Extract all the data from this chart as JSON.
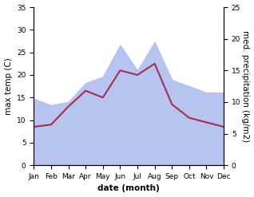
{
  "months": [
    "Jan",
    "Feb",
    "Mar",
    "Apr",
    "May",
    "Jun",
    "Jul",
    "Aug",
    "Sep",
    "Oct",
    "Nov",
    "Dec"
  ],
  "precipitation_kg": [
    10.5,
    9.5,
    10.0,
    13.0,
    14.0,
    19.0,
    15.0,
    19.5,
    13.5,
    12.5,
    11.5,
    11.5
  ],
  "max_temp_C": [
    8.5,
    9.0,
    13.0,
    16.5,
    15.0,
    21.0,
    20.0,
    22.5,
    13.5,
    10.5,
    9.5,
    8.5
  ],
  "temp_color": "#a03050",
  "precip_fill_color": "#b8c4f0",
  "ylim_left": [
    0,
    35
  ],
  "ylim_right": [
    0,
    25
  ],
  "left_yticks": [
    0,
    5,
    10,
    15,
    20,
    25,
    30,
    35
  ],
  "right_yticks": [
    0,
    5,
    10,
    15,
    20,
    25
  ],
  "xlabel": "date (month)",
  "ylabel_left": "max temp (C)",
  "ylabel_right": "med. precipitation (kg/m2)",
  "axis_fontsize": 7.5,
  "tick_fontsize": 6.5,
  "fig_width": 3.18,
  "fig_height": 2.47,
  "dpi": 100
}
